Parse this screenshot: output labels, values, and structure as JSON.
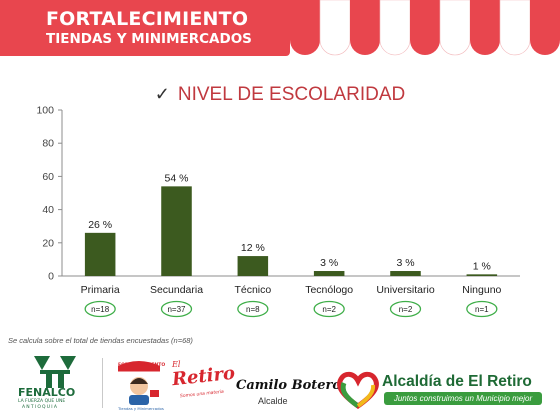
{
  "header": {
    "title_line1": "FORTALECIMIENTO",
    "title_line2": "TIENDAS Y MINIMERCADOS"
  },
  "chart_data": {
    "type": "bar",
    "title": "NIVEL DE ESCOLARIDAD",
    "categories": [
      "Primaria",
      "Secundaria",
      "Técnico",
      "Tecnólogo",
      "Universitario",
      "Ninguno"
    ],
    "values": [
      26,
      54,
      12,
      3,
      3,
      1
    ],
    "value_labels": [
      "26 %",
      "54 %",
      "12 %",
      "3 %",
      "3 %",
      "1 %"
    ],
    "counts": [
      "n=18",
      "n=37",
      "n=8",
      "n=2",
      "n=2",
      "n=1"
    ],
    "ylim": [
      0,
      100
    ],
    "yticks": [
      0,
      20,
      40,
      60,
      80,
      100
    ],
    "bar_color": "#3c5a1f",
    "grid": false
  },
  "footnote": "Se calcula sobre el total de tiendas encuestadas (n=68)",
  "logos": {
    "fenalco_name": "FENALCO",
    "fenalco_tagline": "LA FUERZA QUE UNE",
    "fenalco_region": "ANTIOQUIA",
    "fortalecimiento_small": "FORTALECIMIENTO",
    "fortalecimiento_sub": "Tiendas y Minimercados",
    "retiro_el": "El",
    "retiro_name": "Retiro",
    "retiro_sub": "Somos una materia",
    "camilo_name": "Camilo Botero",
    "camilo_role": "Alcalde",
    "alcaldia_name": "Alcaldía de El Retiro",
    "alcaldia_tagline": "Juntos construimos un Municipio mejor"
  },
  "colors": {
    "banner_red": "#e8464e",
    "title_red": "#c0393f",
    "oval_green": "#3fae49",
    "alcaldia_green": "#1e6a35"
  }
}
